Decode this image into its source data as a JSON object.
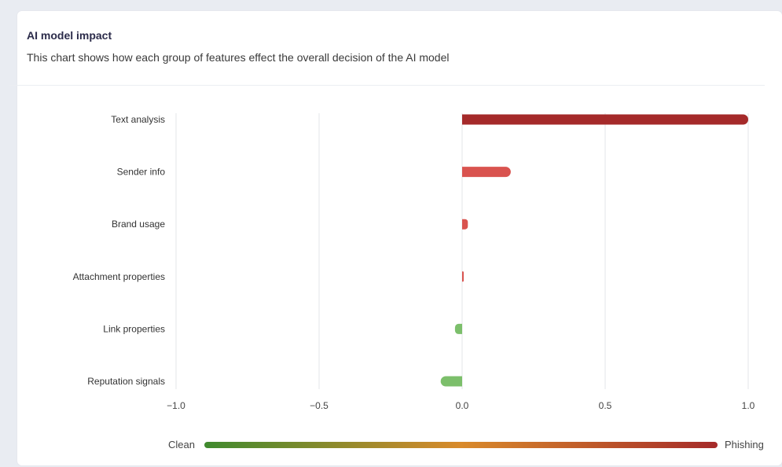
{
  "card": {
    "title": "AI model impact",
    "subtitle": "This chart shows how each group of features effect the overall decision of the AI model"
  },
  "chart_data": {
    "type": "bar",
    "orientation": "horizontal",
    "categories": [
      "Text analysis",
      "Sender info",
      "Brand usage",
      "Attachment properties",
      "Link properties",
      "Reputation signals"
    ],
    "values": [
      1.0,
      0.17,
      0.02,
      0.003,
      -0.025,
      -0.075
    ],
    "xlim": [
      -1.0,
      1.0
    ],
    "xticks": [
      -1.0,
      -0.5,
      0.0,
      0.5,
      1.0
    ],
    "xtick_labels": [
      "−1.0",
      "−0.5",
      "0.0",
      "0.5",
      "1.0"
    ],
    "grid": true,
    "colors": {
      "strong_positive": "#a52a2a",
      "positive": "#d9534f",
      "negative": "#7cbf6b"
    }
  },
  "legend": {
    "left_label": "Clean",
    "right_label": "Phishing",
    "gradient": [
      "#3f8a2e",
      "#d98a2b",
      "#a52a2a"
    ]
  }
}
